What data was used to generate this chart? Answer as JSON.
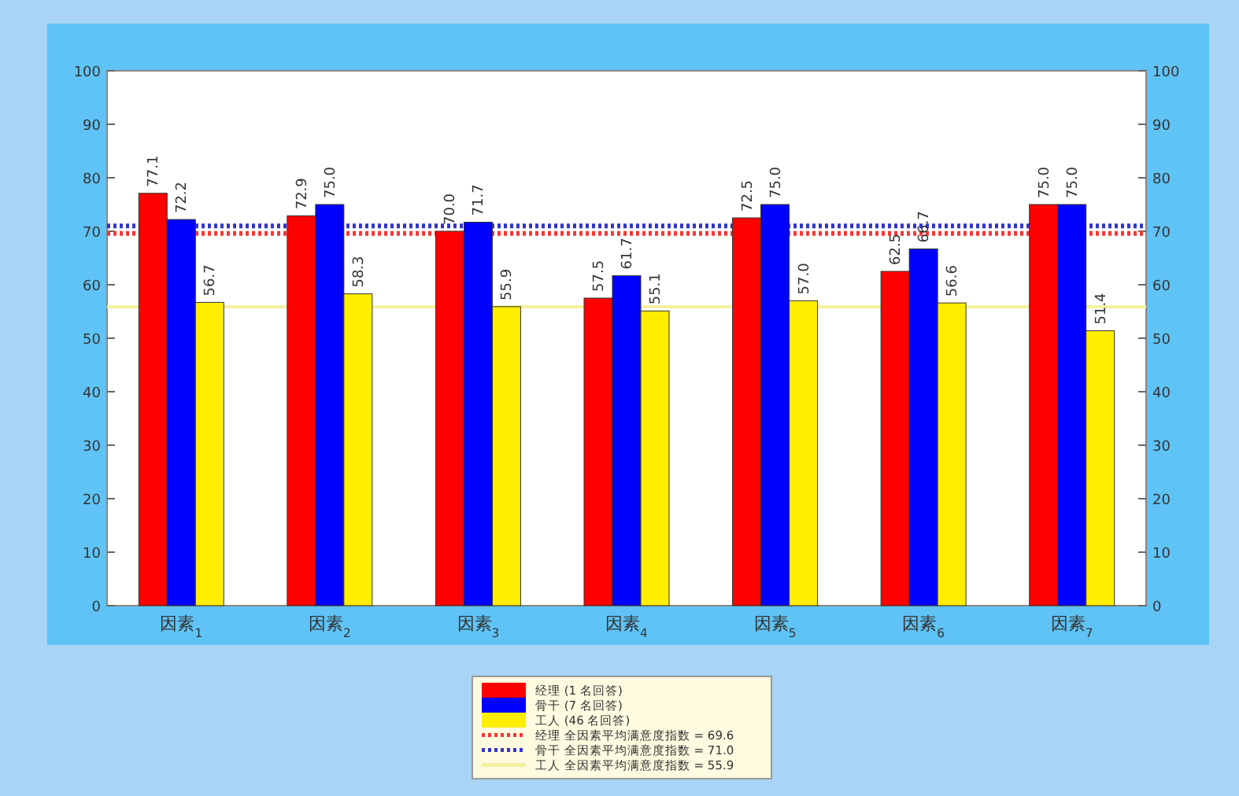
{
  "chart_data": {
    "type": "bar",
    "categories": [
      "因素$_{1}$",
      "因素$_{2}$",
      "因素$_{3}$",
      "因素$_{4}$",
      "因素$_{5}$",
      "因素$_{6}$",
      "因素$_{7}$"
    ],
    "series": [
      {
        "name": "经理 (1 名回答)",
        "color": "#ff0000",
        "values": [
          77.1,
          72.9,
          70.0,
          57.5,
          72.5,
          62.5,
          75.0
        ],
        "value_labels": [
          "77.1",
          "72.9",
          "70.0",
          "57.5",
          "72.5",
          "62.5",
          "75.0"
        ]
      },
      {
        "name": "骨干 (7 名回答)",
        "color": "#0000ff",
        "values": [
          72.2,
          75.0,
          71.7,
          61.7,
          75.0,
          66.7,
          75.0
        ],
        "value_labels": [
          "72.2",
          "75.0",
          "71.7",
          "61.7",
          "75.0",
          "66.7",
          "75.0"
        ]
      },
      {
        "name": "工人 (46 名回答)",
        "color": "#ffee00",
        "values": [
          56.7,
          58.3,
          55.9,
          55.1,
          57.0,
          56.6,
          51.4
        ],
        "value_labels": [
          "56.7",
          "58.3",
          "55.9",
          "55.1",
          "57.0",
          "56.6",
          "51.4"
        ]
      }
    ],
    "ref_lines": [
      {
        "axis": "y",
        "value": 69.6,
        "label": "经理 全因素平均满意度指数 = 69.6",
        "color": "#ff3333",
        "line_style": "dotted"
      },
      {
        "axis": "y",
        "value": 71.0,
        "label": "骨干 全因素平均满意度指数 = 71.0",
        "color": "#3333cc",
        "line_style": "dotted"
      },
      {
        "axis": "y",
        "value": 55.9,
        "label": "工人 全因素平均满意度指数 = 55.9",
        "color": "#f5f0a0",
        "line_style": "solid"
      }
    ],
    "ylim": [
      0,
      100
    ],
    "yticks": [
      0,
      10,
      20,
      30,
      40,
      50,
      60,
      70,
      80,
      90,
      100
    ],
    "y2lim": [
      0,
      100
    ],
    "y2ticks": [
      0,
      10,
      20,
      30,
      40,
      50,
      60,
      70,
      80,
      90,
      100
    ],
    "legend": "bottom",
    "grid": false
  }
}
